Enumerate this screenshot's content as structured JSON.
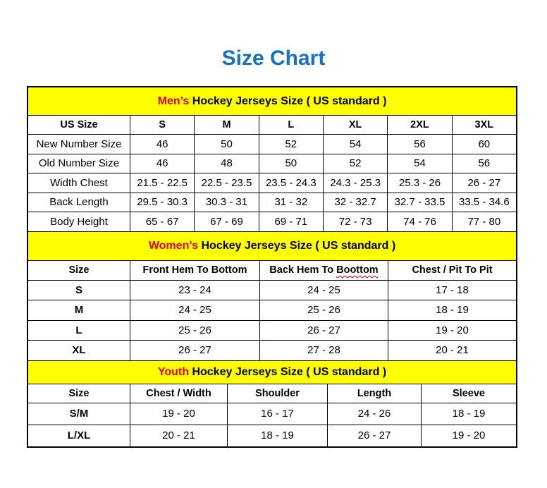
{
  "title": "Size Chart",
  "colors": {
    "title": "#1a6fbf",
    "band": "#ffff00",
    "highlight": "#e60000"
  },
  "mens": {
    "band_highlight": "Men’s",
    "band_rest": " Hockey Jerseys Size ( US standard )",
    "headers": [
      "US Size",
      "S",
      "M",
      "L",
      "XL",
      "2XL",
      "3XL"
    ],
    "rows": [
      [
        "New Number Size",
        "46",
        "50",
        "52",
        "54",
        "56",
        "60"
      ],
      [
        "Old Number Size",
        "46",
        "48",
        "50",
        "52",
        "54",
        "56"
      ],
      [
        "Width Chest",
        "21.5 - 22.5",
        "22.5 - 23.5",
        "23.5 - 24.3",
        "24.3 - 25.3",
        "25.3 - 26",
        "26 - 27"
      ],
      [
        "Back Length",
        "29.5 - 30.3",
        "30.3 - 31",
        "31 - 32",
        "32 - 32.7",
        "32.7 - 33.5",
        "33.5 - 34.6"
      ],
      [
        "Body Height",
        "65 - 67",
        "67 - 69",
        "69 - 71",
        "72 - 73",
        "74 - 76",
        "77 - 80"
      ]
    ]
  },
  "womens": {
    "band_highlight": "Women’s",
    "band_rest": " Hockey Jerseys Size ( US standard )",
    "headers": [
      "Size",
      "Front Hem To Bottom",
      "Back Hem To ",
      "Chest / Pit To Pit"
    ],
    "header_misspelled": "Boottom",
    "rows": [
      [
        "S",
        "23 - 24",
        "24 - 25",
        "17 - 18"
      ],
      [
        "M",
        "24 - 25",
        "25 - 26",
        "18 - 19"
      ],
      [
        "L",
        "25 - 26",
        "26 - 27",
        "19 - 20"
      ],
      [
        "XL",
        "26 - 27",
        "27 - 28",
        "20 - 21"
      ]
    ]
  },
  "youth": {
    "band_highlight": "Youth",
    "band_rest": " Hockey Jerseys Size ( US standard )",
    "headers": [
      "Size",
      "Chest / Width",
      "Shoulder",
      "Length",
      "Sleeve"
    ],
    "rows": [
      [
        "S/M",
        "19 - 20",
        "16 - 17",
        "24 - 26",
        "18 - 19"
      ],
      [
        "L/XL",
        "20 - 21",
        "18 - 19",
        "26 - 27",
        "19 - 20"
      ]
    ]
  }
}
